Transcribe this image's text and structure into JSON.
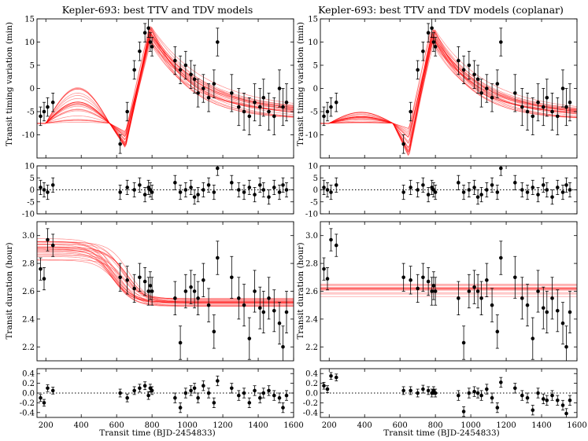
{
  "figure": {
    "left_title": "Kepler-693: best TTV and TDV models",
    "right_title": "Kepler-693: best TTV and TDV models (coplanar)",
    "xlabel": "Transit time (BJD-2454833)",
    "ttv_ylabel": "Transit timing variation (min)",
    "tdv_ylabel": "Transit duration (hour)",
    "colors": {
      "model": "#ff0000",
      "points": "#000000",
      "axes": "#000000"
    }
  },
  "chart_data": [
    {
      "type": "scatter",
      "title": "Kepler-693: best TTV and TDV models",
      "panels": [
        {
          "name": "ttv",
          "ylabel": "Transit timing variation (min)",
          "xlim": [
            150,
            1600
          ],
          "ylim": [
            -15,
            15
          ],
          "yticks": [
            -10,
            -5,
            0,
            5,
            10,
            15
          ],
          "x": [
            170,
            190,
            210,
            240,
            620,
            660,
            700,
            730,
            760,
            780,
            790,
            800,
            930,
            960,
            990,
            1020,
            1040,
            1060,
            1090,
            1120,
            1150,
            1170,
            1250,
            1290,
            1320,
            1350,
            1380,
            1410,
            1430,
            1460,
            1490,
            1520,
            1540,
            1560
          ],
          "y": [
            -6,
            -5,
            -4,
            -3,
            -12,
            -5,
            4,
            8,
            12,
            13,
            10,
            9,
            6,
            4,
            5,
            3,
            2,
            -1,
            0,
            -2,
            1,
            10,
            -1,
            -4,
            -5,
            -6,
            -3,
            -4,
            -2,
            -5,
            -6,
            0,
            -4,
            -3
          ],
          "yerr": [
            2,
            2,
            2,
            2,
            2,
            2,
            2,
            2,
            2,
            2,
            2,
            2,
            3,
            3,
            3,
            3,
            3,
            3,
            3,
            3,
            3,
            3,
            4,
            4,
            4,
            4,
            4,
            4,
            4,
            4,
            4,
            4,
            4,
            4
          ],
          "models": {
            "count": 24,
            "before": [
              -7.5,
              -7.5
            ],
            "bump_amplitude": [
              0,
              8
            ],
            "minimum": [
              -13,
              -9
            ],
            "peak_position": [
              780,
              800
            ],
            "peak_value": [
              10,
              13.5
            ],
            "end": [
              -7,
              -4.5
            ],
            "decay": [
              200,
              320
            ]
          }
        },
        {
          "name": "ttv_residual",
          "ylim": [
            -10,
            10
          ],
          "yticks": [
            -10,
            -5,
            0,
            5,
            10
          ],
          "x": [
            170,
            190,
            210,
            240,
            620,
            660,
            700,
            730,
            760,
            780,
            790,
            800,
            930,
            960,
            990,
            1020,
            1040,
            1060,
            1090,
            1120,
            1150,
            1170,
            1250,
            1290,
            1320,
            1350,
            1380,
            1410,
            1430,
            1460,
            1490,
            1520,
            1540,
            1560
          ],
          "y": [
            1,
            0,
            -1,
            2,
            -1,
            1,
            0,
            2,
            -2,
            1,
            0,
            -1,
            3,
            -1,
            0,
            1,
            -3,
            -2,
            0,
            2,
            -1,
            9,
            3,
            0,
            -1,
            1,
            -2,
            2,
            0,
            -3,
            1,
            -1,
            2,
            0
          ],
          "yerr": [
            3,
            3,
            3,
            3,
            3,
            3,
            3,
            3,
            3,
            3,
            3,
            3,
            3,
            3,
            3,
            3,
            3,
            3,
            3,
            3,
            3,
            3,
            3,
            3,
            3,
            3,
            3,
            3,
            3,
            3,
            3,
            3,
            3,
            3
          ]
        },
        {
          "name": "tdv",
          "ylabel": "Transit duration (hour)",
          "ylim": [
            2.1,
            3.1
          ],
          "yticks": [
            2.2,
            2.4,
            2.6,
            2.8,
            3.0
          ],
          "x": [
            170,
            190,
            210,
            240,
            620,
            660,
            700,
            730,
            760,
            780,
            790,
            800,
            930,
            960,
            990,
            1020,
            1040,
            1060,
            1090,
            1120,
            1150,
            1170,
            1250,
            1290,
            1320,
            1350,
            1380,
            1410,
            1430,
            1460,
            1490,
            1520,
            1540,
            1560
          ],
          "y": [
            2.76,
            2.69,
            2.97,
            2.93,
            2.7,
            2.68,
            2.62,
            2.7,
            2.67,
            2.6,
            2.64,
            2.6,
            2.55,
            2.23,
            2.6,
            2.63,
            2.6,
            2.55,
            2.68,
            2.5,
            2.31,
            2.84,
            2.7,
            2.55,
            2.5,
            2.26,
            2.6,
            2.48,
            2.45,
            2.55,
            2.46,
            2.37,
            2.2,
            2.45
          ],
          "yerr": [
            0.08,
            0.08,
            0.08,
            0.08,
            0.1,
            0.1,
            0.1,
            0.1,
            0.1,
            0.1,
            0.1,
            0.1,
            0.12,
            0.12,
            0.12,
            0.12,
            0.12,
            0.12,
            0.12,
            0.12,
            0.12,
            0.12,
            0.15,
            0.15,
            0.15,
            0.15,
            0.15,
            0.15,
            0.15,
            0.15,
            0.15,
            0.15,
            0.15,
            0.15
          ],
          "models": {
            "count": 24,
            "start": [
              2.82,
              2.98
            ],
            "end": [
              2.49,
              2.55
            ],
            "transition": [
              560,
              680
            ]
          }
        },
        {
          "name": "tdv_residual",
          "ylim": [
            -0.5,
            0.5
          ],
          "yticks": [
            -0.4,
            -0.2,
            0.0,
            0.2,
            0.4
          ],
          "x": [
            170,
            190,
            210,
            240,
            620,
            660,
            700,
            730,
            760,
            780,
            790,
            800,
            930,
            960,
            990,
            1020,
            1040,
            1060,
            1090,
            1120,
            1150,
            1170,
            1250,
            1290,
            1320,
            1350,
            1380,
            1410,
            1430,
            1460,
            1490,
            1520,
            1540,
            1560
          ],
          "y": [
            -0.1,
            -0.2,
            0.1,
            0.05,
            0.0,
            -0.1,
            0.05,
            0.1,
            0.15,
            -0.05,
            0.1,
            0.05,
            -0.1,
            -0.3,
            0.0,
            0.05,
            0.1,
            -0.1,
            0.15,
            0.0,
            -0.2,
            0.25,
            0.1,
            -0.05,
            0.0,
            -0.2,
            0.05,
            -0.1,
            0.0,
            0.05,
            -0.05,
            -0.1,
            -0.3,
            -0.05
          ],
          "yerr": [
            0.07,
            0.07,
            0.07,
            0.07,
            0.08,
            0.08,
            0.08,
            0.08,
            0.08,
            0.08,
            0.08,
            0.08,
            0.1,
            0.1,
            0.1,
            0.1,
            0.1,
            0.1,
            0.1,
            0.1,
            0.1,
            0.1,
            0.1,
            0.1,
            0.1,
            0.1,
            0.1,
            0.1,
            0.1,
            0.1,
            0.1,
            0.1,
            0.1,
            0.1
          ],
          "xticks": [
            200,
            400,
            600,
            800,
            1000,
            1200,
            1400,
            1600
          ],
          "xlabel": "Transit time (BJD-2454833)"
        }
      ]
    },
    {
      "type": "scatter",
      "title": "Kepler-693: best TTV and TDV models (coplanar)",
      "panels": [
        {
          "name": "ttv",
          "ylabel": "Transit timing variation (min)",
          "xlim": [
            150,
            1600
          ],
          "ylim": [
            -15,
            15
          ],
          "yticks": [
            -10,
            -5,
            0,
            5,
            10,
            15
          ],
          "x": [
            170,
            190,
            210,
            240,
            620,
            660,
            700,
            730,
            760,
            780,
            790,
            800,
            930,
            960,
            990,
            1020,
            1040,
            1060,
            1090,
            1120,
            1150,
            1170,
            1250,
            1290,
            1320,
            1350,
            1380,
            1410,
            1430,
            1460,
            1490,
            1520,
            1540,
            1560
          ],
          "y": [
            -6,
            -5,
            -4,
            -3,
            -12,
            -5,
            4,
            8,
            12,
            13,
            10,
            9,
            6,
            4,
            5,
            3,
            2,
            -1,
            0,
            -2,
            1,
            10,
            -1,
            -4,
            -5,
            -6,
            -3,
            -4,
            -2,
            -5,
            -6,
            0,
            -4,
            -3
          ],
          "yerr": [
            2,
            2,
            2,
            2,
            2,
            2,
            2,
            2,
            2,
            2,
            2,
            2,
            3,
            3,
            3,
            3,
            3,
            3,
            3,
            3,
            3,
            3,
            4,
            4,
            4,
            4,
            4,
            4,
            4,
            4,
            4,
            4,
            4,
            4
          ],
          "models": {
            "count": 24,
            "before": [
              -7.5,
              -7.5
            ],
            "bump_amplitude": [
              0,
              2.5
            ],
            "minimum": [
              -15,
              -8
            ],
            "peak_position": [
              770,
              800
            ],
            "peak_value": [
              10,
              13
            ],
            "end": [
              -7,
              -5
            ],
            "decay": [
              200,
              300
            ]
          }
        },
        {
          "name": "ttv_residual",
          "ylim": [
            -10,
            10
          ],
          "yticks": [
            -10,
            -5,
            0,
            5,
            10
          ],
          "x": [
            170,
            190,
            210,
            240,
            620,
            660,
            700,
            730,
            760,
            780,
            790,
            800,
            930,
            960,
            990,
            1020,
            1040,
            1060,
            1090,
            1120,
            1150,
            1170,
            1250,
            1290,
            1320,
            1350,
            1380,
            1410,
            1430,
            1460,
            1490,
            1520,
            1540,
            1560
          ],
          "y": [
            1,
            0,
            -1,
            2,
            -1,
            1,
            0,
            2,
            -2,
            1,
            0,
            -1,
            3,
            -1,
            0,
            1,
            -3,
            -2,
            0,
            2,
            -1,
            9,
            3,
            0,
            -1,
            1,
            -2,
            2,
            0,
            -3,
            1,
            -1,
            2,
            0
          ],
          "yerr": [
            3,
            3,
            3,
            3,
            3,
            3,
            3,
            3,
            3,
            3,
            3,
            3,
            3,
            3,
            3,
            3,
            3,
            3,
            3,
            3,
            3,
            3,
            3,
            3,
            3,
            3,
            3,
            3,
            3,
            3,
            3,
            3,
            3,
            3
          ]
        },
        {
          "name": "tdv",
          "ylabel": "Transit duration (hour)",
          "ylim": [
            2.1,
            3.1
          ],
          "yticks": [
            2.2,
            2.4,
            2.6,
            2.8,
            3.0
          ],
          "x": [
            170,
            190,
            210,
            240,
            620,
            660,
            700,
            730,
            760,
            780,
            790,
            800,
            930,
            960,
            990,
            1020,
            1040,
            1060,
            1090,
            1120,
            1150,
            1170,
            1250,
            1290,
            1320,
            1350,
            1380,
            1410,
            1430,
            1460,
            1490,
            1520,
            1540,
            1560
          ],
          "y": [
            2.76,
            2.69,
            2.97,
            2.93,
            2.7,
            2.68,
            2.62,
            2.7,
            2.67,
            2.6,
            2.64,
            2.6,
            2.55,
            2.23,
            2.6,
            2.63,
            2.6,
            2.55,
            2.68,
            2.5,
            2.31,
            2.84,
            2.7,
            2.55,
            2.5,
            2.26,
            2.6,
            2.48,
            2.45,
            2.55,
            2.46,
            2.37,
            2.2,
            2.45
          ],
          "yerr": [
            0.08,
            0.08,
            0.08,
            0.08,
            0.1,
            0.1,
            0.1,
            0.1,
            0.1,
            0.1,
            0.1,
            0.1,
            0.12,
            0.12,
            0.12,
            0.12,
            0.12,
            0.12,
            0.12,
            0.12,
            0.12,
            0.12,
            0.15,
            0.15,
            0.15,
            0.15,
            0.15,
            0.15,
            0.15,
            0.15,
            0.15,
            0.15,
            0.15,
            0.15
          ],
          "models": {
            "count": 14,
            "start": [
              2.56,
              2.67
            ],
            "end": [
              2.56,
              2.67
            ],
            "transition": [
              600,
              600
            ]
          }
        },
        {
          "name": "tdv_residual",
          "ylim": [
            -0.5,
            0.5
          ],
          "yticks": [
            -0.4,
            -0.2,
            0.0,
            0.2,
            0.4
          ],
          "x": [
            170,
            190,
            210,
            240,
            620,
            660,
            700,
            730,
            760,
            780,
            790,
            800,
            930,
            960,
            990,
            1020,
            1040,
            1060,
            1090,
            1120,
            1150,
            1170,
            1250,
            1290,
            1320,
            1350,
            1380,
            1410,
            1430,
            1460,
            1490,
            1520,
            1540,
            1560
          ],
          "y": [
            0.15,
            0.08,
            0.35,
            0.32,
            0.05,
            0.05,
            0.0,
            0.08,
            0.05,
            0.0,
            0.05,
            0.0,
            -0.05,
            -0.38,
            0.0,
            0.03,
            0.0,
            -0.05,
            0.08,
            -0.1,
            -0.3,
            0.22,
            0.1,
            -0.05,
            -0.1,
            -0.35,
            0.0,
            -0.12,
            -0.15,
            -0.05,
            -0.15,
            -0.25,
            -0.42,
            -0.15
          ],
          "yerr": [
            0.07,
            0.07,
            0.07,
            0.07,
            0.08,
            0.08,
            0.08,
            0.08,
            0.08,
            0.08,
            0.08,
            0.08,
            0.1,
            0.1,
            0.1,
            0.1,
            0.1,
            0.1,
            0.1,
            0.1,
            0.1,
            0.1,
            0.1,
            0.1,
            0.1,
            0.1,
            0.1,
            0.1,
            0.1,
            0.1,
            0.1,
            0.1,
            0.1,
            0.1
          ],
          "xticks": [
            200,
            400,
            600,
            800,
            1000,
            1200,
            1400,
            1600
          ],
          "xlabel": "Transit time (BJD-2454833)"
        }
      ]
    }
  ]
}
